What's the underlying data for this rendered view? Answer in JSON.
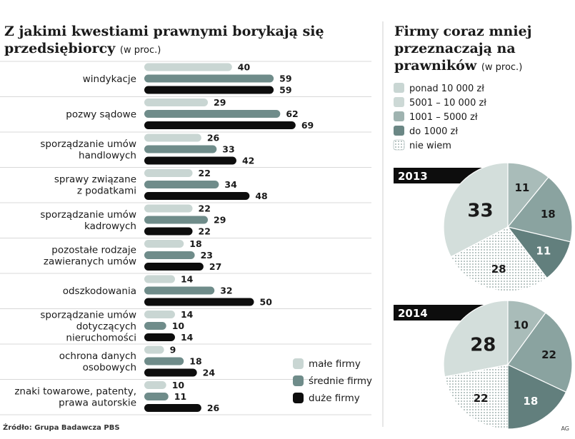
{
  "left": {
    "title": "Z jakimi kwestiami prawnymi borykają się przedsiębiorcy",
    "unit": "(w proc.)"
  },
  "right": {
    "title": "Firmy coraz mniej przeznaczają na prawników",
    "unit": "(w proc.)"
  },
  "source": "Źródło: Grupa Badawcza PBS",
  "credit": "AG",
  "colors": {
    "small": "#c9d6d3",
    "medium": "#6f8c8a",
    "large": "#0d0d0d",
    "light_pie": "#cdd9d6",
    "med_pie": "#9fb3b0",
    "dark_pie": "#6b8785"
  },
  "chart_data": [
    {
      "type": "bar",
      "orientation": "horizontal",
      "title": "Z jakimi kwestiami prawnymi borykają się przedsiębiorcy (w proc.)",
      "categories": [
        [
          "windykacje"
        ],
        [
          "pozwy sądowe"
        ],
        [
          "sporządzanie umów",
          "handlowych"
        ],
        [
          "sprawy związane",
          "z podatkami"
        ],
        [
          "sporządzanie umów",
          "kadrowych"
        ],
        [
          "pozostałe rodzaje",
          "zawieranych umów"
        ],
        [
          "odszkodowania"
        ],
        [
          "sporządzanie umów",
          "dotyczących",
          "nieruchomości"
        ],
        [
          "ochrona danych",
          "osobowych"
        ],
        [
          "znaki towarowe, patenty,",
          "prawa autorskie"
        ]
      ],
      "series": [
        {
          "name": "małe firmy",
          "color": "#c9d6d3",
          "values": [
            40,
            29,
            26,
            22,
            22,
            18,
            14,
            14,
            9,
            10
          ]
        },
        {
          "name": "średnie firmy",
          "color": "#6f8c8a",
          "values": [
            59,
            62,
            33,
            34,
            29,
            23,
            32,
            10,
            18,
            11
          ]
        },
        {
          "name": "duże firmy",
          "color": "#0d0d0d",
          "values": [
            59,
            69,
            42,
            48,
            22,
            27,
            50,
            14,
            24,
            26
          ]
        }
      ],
      "legend": [
        "małe firmy",
        "średnie firmy",
        "duże firmy"
      ],
      "xlim": [
        0,
        70
      ]
    },
    {
      "type": "pie",
      "title": "Firmy coraz mniej przeznaczają na prawników (w proc.)",
      "legend": [
        "ponad 10 000 zł",
        "5001 – 10 000 zł",
        "1001 – 5000 zł",
        "do 1000 zł",
        "nie wiem"
      ],
      "pies": [
        {
          "year": "2013",
          "values": [
            33,
            11,
            18,
            11,
            28
          ]
        },
        {
          "year": "2014",
          "values": [
            28,
            10,
            22,
            18,
            22
          ]
        }
      ]
    }
  ]
}
